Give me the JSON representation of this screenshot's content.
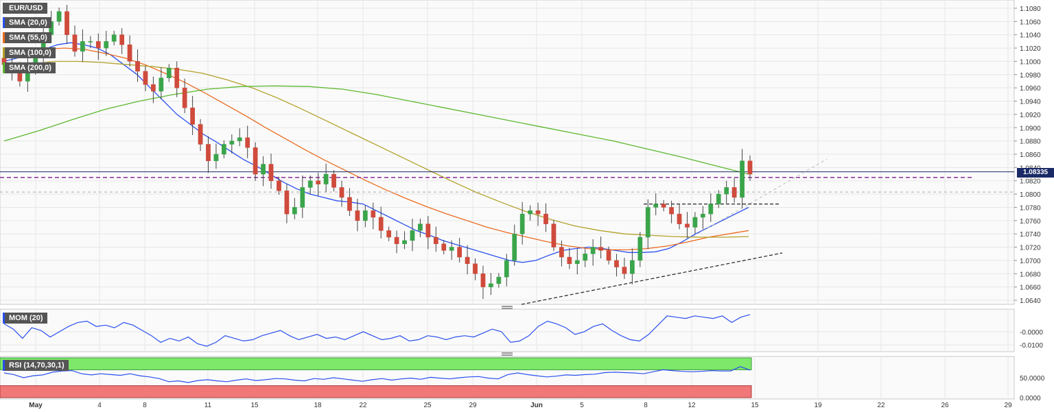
{
  "chart_data": [
    {
      "type": "candlestick",
      "symbol": "EUR/USD",
      "indicator_labels": [
        "SMA (20,0)",
        "SMA (55,0)",
        "SMA (100,0)",
        "SMA (200,0)"
      ],
      "indicator_colors": [
        "#2a4ff0",
        "#ea6b20",
        "#b3a028",
        "#5cb82e"
      ],
      "last_price": "1.08335",
      "ylim": [
        1.063,
        1.109
      ],
      "y_ticks": [
        "1.1080",
        "1.1060",
        "1.1040",
        "1.1020",
        "1.1000",
        "1.0980",
        "1.0960",
        "1.0940",
        "1.0920",
        "1.0900",
        "1.0880",
        "1.0860",
        "1.0840",
        "1.0820",
        "1.0800",
        "1.0780",
        "1.0760",
        "1.0740",
        "1.0720",
        "1.0700",
        "1.0680",
        "1.0660",
        "1.0640"
      ],
      "x_labels": [
        "May",
        "4",
        "8",
        "11",
        "15",
        "18",
        "22",
        "25",
        "29",
        "Jun",
        "5",
        "8",
        "12",
        "15",
        "19",
        "22",
        "26",
        "29"
      ],
      "levels": {
        "horizontal_dashed_purple": 1.0825,
        "horizontal_dashed_gray": 1.0803,
        "horizontal_dashed_black": 1.0785
      },
      "closes": [
        1.0995,
        1.0985,
        1.097,
        1.099,
        1.101,
        1.104,
        1.106,
        1.1075,
        1.104,
        1.1015,
        1.103,
        1.103,
        1.102,
        1.103,
        1.104,
        1.1025,
        1.1,
        1.0985,
        1.0965,
        1.0955,
        1.0975,
        1.099,
        1.096,
        1.093,
        1.0905,
        1.0875,
        1.085,
        1.086,
        1.0875,
        1.088,
        1.0885,
        1.087,
        1.083,
        1.0845,
        1.082,
        1.0805,
        1.077,
        1.078,
        1.081,
        1.082,
        1.0815,
        1.083,
        1.081,
        1.0795,
        1.0775,
        1.076,
        1.0775,
        1.0765,
        1.0745,
        1.0735,
        1.0725,
        1.073,
        1.0745,
        1.0755,
        1.0735,
        1.0725,
        1.0715,
        1.072,
        1.0705,
        1.0695,
        1.068,
        1.066,
        1.0665,
        1.0675,
        1.07,
        1.074,
        1.077,
        1.0775,
        1.077,
        1.0755,
        1.072,
        1.0705,
        1.0695,
        1.07,
        1.071,
        1.072,
        1.0715,
        1.07,
        1.069,
        1.068,
        1.07,
        1.0735,
        1.078,
        1.0785,
        1.078,
        1.077,
        1.0755,
        1.075,
        1.0765,
        1.077,
        1.0785,
        1.08,
        1.081,
        1.0795,
        1.085,
        1.083
      ],
      "series": [
        {
          "name": "SMA (20,0)",
          "values": [
            1.1,
            1.1005,
            1.101,
            1.1018,
            1.1025,
            1.1028,
            1.1025,
            1.102,
            1.101,
            1.0995,
            1.098,
            1.096,
            1.094,
            1.092,
            1.0905,
            1.089,
            1.0878,
            1.0865,
            1.0852,
            1.0842,
            1.083,
            1.0818,
            1.0808,
            1.08,
            1.0795,
            1.079,
            1.0788,
            1.0785,
            1.0775,
            1.0765,
            1.0755,
            1.0745,
            1.0738,
            1.073,
            1.0724,
            1.0718,
            1.0712,
            1.0706,
            1.07,
            1.0697,
            1.07,
            1.0708,
            1.0715,
            1.0718,
            1.072,
            1.0718,
            1.0715,
            1.0712,
            1.0712,
            1.0713,
            1.0718,
            1.0728,
            1.074,
            1.075,
            1.076,
            1.077,
            1.078
          ]
        },
        {
          "name": "SMA (55,0)",
          "values": [
            1.101,
            1.1015,
            1.1018,
            1.102,
            1.1018,
            1.1012,
            1.1005,
            1.0995,
            1.0982,
            1.0968,
            1.0952,
            1.0935,
            1.0918,
            1.09,
            1.0883,
            1.0866,
            1.085,
            1.0835,
            1.082,
            1.0806,
            1.0793,
            1.0781,
            1.077,
            1.076,
            1.075,
            1.0742,
            1.0735,
            1.0728,
            1.0722,
            1.0718,
            1.0716,
            1.0716,
            1.0718,
            1.0722,
            1.0728,
            1.0735,
            1.074,
            1.0745
          ]
        },
        {
          "name": "SMA (100,0)",
          "values": [
            1.0985,
            1.0995,
            1.1,
            1.1,
            1.0998,
            1.0995,
            1.0992,
            1.0988,
            1.0982,
            1.0972,
            1.096,
            1.0945,
            1.0928,
            1.091,
            1.0892,
            1.0874,
            1.0856,
            1.0838,
            1.082,
            1.0803,
            1.0788,
            1.0774,
            1.0762,
            1.0752,
            1.0745,
            1.074,
            1.0738,
            1.0736,
            1.0735,
            1.0735,
            1.0736
          ]
        },
        {
          "name": "SMA (200,0)",
          "values": [
            1.088,
            1.0895,
            1.0912,
            1.0928,
            1.094,
            1.095,
            1.0958,
            1.0962,
            1.0963,
            1.0962,
            1.0958,
            1.095,
            1.094,
            1.093,
            1.092,
            1.091,
            1.09,
            1.089,
            1.088,
            1.0868,
            1.0856,
            1.0843,
            1.083
          ]
        }
      ]
    },
    {
      "type": "line",
      "title": "MOM (20)",
      "y_ticks": [
        "-0.0000",
        "-0.0100"
      ],
      "values": [
        0.006,
        0.002,
        -0.005,
        0.003,
        0.001,
        -0.004,
        0.0,
        0.004,
        0.007,
        0.008,
        0.004,
        0.005,
        0.003,
        0.007,
        0.005,
        0.001,
        -0.003,
        -0.008,
        -0.005,
        -0.007,
        -0.004,
        -0.009,
        -0.011,
        -0.008,
        -0.003,
        -0.005,
        -0.007,
        -0.006,
        -0.003,
        -0.001,
        0.001,
        -0.003,
        -0.006,
        -0.004,
        -0.002,
        -0.005,
        -0.004,
        -0.006,
        -0.003,
        0.0,
        -0.003,
        -0.006,
        -0.005,
        -0.003,
        -0.007,
        -0.006,
        -0.003,
        -0.004,
        -0.006,
        -0.004,
        -0.003,
        -0.004,
        -0.001,
        0.002,
        0.0,
        -0.008,
        -0.007,
        -0.003,
        0.004,
        0.008,
        0.006,
        0.003,
        -0.002,
        0.0,
        0.004,
        0.006,
        0.001,
        -0.003,
        -0.006,
        -0.007,
        -0.002,
        0.005,
        0.012,
        0.011,
        0.01,
        0.012,
        0.011,
        0.01,
        0.012,
        0.007,
        0.011,
        0.013
      ]
    },
    {
      "type": "line",
      "title": "RSI (14,70,30,1)",
      "y_ticks": [
        "50.0000",
        "0.0000"
      ],
      "values": [
        62,
        58,
        50,
        55,
        57,
        64,
        67,
        68,
        60,
        57,
        60,
        58,
        56,
        60,
        55,
        52,
        48,
        40,
        42,
        38,
        43,
        45,
        42,
        40,
        44,
        47,
        43,
        45,
        48,
        47,
        44,
        42,
        48,
        46,
        50,
        47,
        44,
        41,
        45,
        48,
        44,
        47,
        49,
        46,
        51,
        49,
        47,
        50,
        52,
        53,
        49,
        47,
        58,
        62,
        58,
        55,
        52,
        54,
        57,
        56,
        58,
        59,
        63,
        64,
        63,
        62,
        60,
        65,
        70,
        68,
        66,
        65,
        66,
        68,
        67,
        67,
        78,
        69
      ]
    }
  ]
}
